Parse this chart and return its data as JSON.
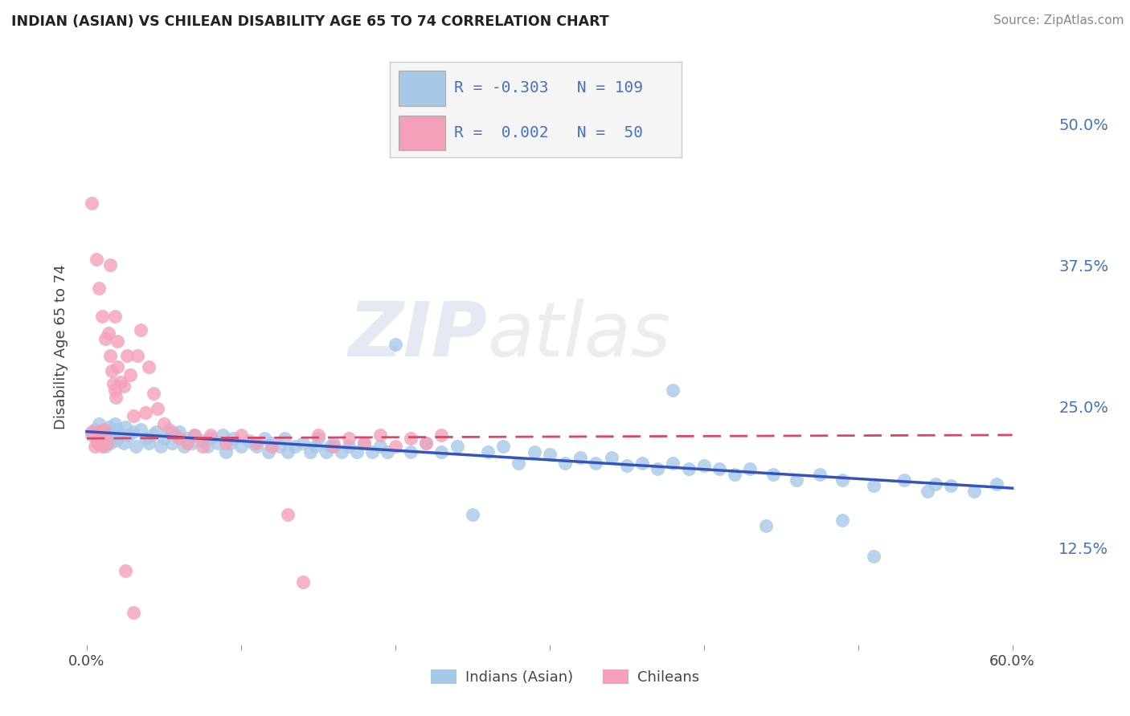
{
  "title": "INDIAN (ASIAN) VS CHILEAN DISABILITY AGE 65 TO 74 CORRELATION CHART",
  "source": "Source: ZipAtlas.com",
  "ylabel": "Disability Age 65 to 74",
  "xlim": [
    -0.005,
    0.625
  ],
  "ylim": [
    0.04,
    0.565
  ],
  "x_ticks": [
    0.0,
    0.1,
    0.2,
    0.3,
    0.4,
    0.5,
    0.6
  ],
  "x_tick_labels": [
    "0.0%",
    "",
    "",
    "",
    "",
    "",
    "60.0%"
  ],
  "y_ticks_right": [
    0.125,
    0.25,
    0.375,
    0.5
  ],
  "y_tick_labels_right": [
    "12.5%",
    "25.0%",
    "37.5%",
    "50.0%"
  ],
  "indian_color": "#a8c8e8",
  "chilean_color": "#f4a0b8",
  "indian_line_color": "#3355bb",
  "chilean_line_color": "#dd4466",
  "R_indian": -0.303,
  "N_indian": 109,
  "R_chilean": 0.002,
  "N_chilean": 50,
  "indian_x": [
    0.003,
    0.005,
    0.007,
    0.008,
    0.009,
    0.01,
    0.011,
    0.012,
    0.013,
    0.014,
    0.015,
    0.016,
    0.017,
    0.018,
    0.019,
    0.02,
    0.022,
    0.024,
    0.025,
    0.027,
    0.03,
    0.032,
    0.035,
    0.038,
    0.04,
    0.042,
    0.045,
    0.048,
    0.05,
    0.053,
    0.055,
    0.058,
    0.06,
    0.063,
    0.065,
    0.068,
    0.07,
    0.075,
    0.078,
    0.08,
    0.085,
    0.088,
    0.09,
    0.093,
    0.095,
    0.1,
    0.105,
    0.108,
    0.11,
    0.115,
    0.118,
    0.12,
    0.125,
    0.128,
    0.13,
    0.135,
    0.14,
    0.145,
    0.148,
    0.15,
    0.155,
    0.158,
    0.16,
    0.165,
    0.17,
    0.175,
    0.18,
    0.185,
    0.19,
    0.195,
    0.2,
    0.21,
    0.22,
    0.23,
    0.24,
    0.25,
    0.26,
    0.27,
    0.28,
    0.29,
    0.3,
    0.31,
    0.32,
    0.33,
    0.34,
    0.35,
    0.36,
    0.37,
    0.38,
    0.39,
    0.4,
    0.41,
    0.42,
    0.43,
    0.445,
    0.46,
    0.475,
    0.49,
    0.51,
    0.53,
    0.545,
    0.56,
    0.575,
    0.59,
    0.38,
    0.44,
    0.49,
    0.51,
    0.55
  ],
  "indian_y": [
    0.225,
    0.23,
    0.22,
    0.235,
    0.218,
    0.222,
    0.228,
    0.215,
    0.225,
    0.232,
    0.218,
    0.228,
    0.222,
    0.235,
    0.22,
    0.23,
    0.225,
    0.218,
    0.232,
    0.225,
    0.228,
    0.215,
    0.23,
    0.222,
    0.218,
    0.225,
    0.228,
    0.215,
    0.222,
    0.23,
    0.218,
    0.225,
    0.228,
    0.215,
    0.222,
    0.218,
    0.225,
    0.22,
    0.215,
    0.222,
    0.218,
    0.225,
    0.21,
    0.218,
    0.222,
    0.215,
    0.22,
    0.218,
    0.215,
    0.222,
    0.21,
    0.218,
    0.215,
    0.222,
    0.21,
    0.215,
    0.218,
    0.21,
    0.215,
    0.222,
    0.21,
    0.215,
    0.218,
    0.21,
    0.215,
    0.21,
    0.218,
    0.21,
    0.215,
    0.21,
    0.305,
    0.21,
    0.218,
    0.21,
    0.215,
    0.155,
    0.21,
    0.215,
    0.2,
    0.21,
    0.208,
    0.2,
    0.205,
    0.2,
    0.205,
    0.198,
    0.2,
    0.195,
    0.2,
    0.195,
    0.198,
    0.195,
    0.19,
    0.195,
    0.19,
    0.185,
    0.19,
    0.185,
    0.18,
    0.185,
    0.175,
    0.18,
    0.175,
    0.182,
    0.265,
    0.145,
    0.15,
    0.118,
    0.182
  ],
  "chilean_x": [
    0.003,
    0.005,
    0.006,
    0.007,
    0.008,
    0.009,
    0.01,
    0.011,
    0.012,
    0.013,
    0.014,
    0.015,
    0.016,
    0.017,
    0.018,
    0.019,
    0.02,
    0.022,
    0.024,
    0.026,
    0.028,
    0.03,
    0.033,
    0.035,
    0.038,
    0.04,
    0.043,
    0.046,
    0.05,
    0.055,
    0.06,
    0.065,
    0.07,
    0.075,
    0.08,
    0.09,
    0.1,
    0.11,
    0.12,
    0.13,
    0.14,
    0.15,
    0.16,
    0.17,
    0.18,
    0.19,
    0.2,
    0.21,
    0.22,
    0.23
  ],
  "chilean_y": [
    0.228,
    0.215,
    0.222,
    0.218,
    0.228,
    0.222,
    0.215,
    0.23,
    0.225,
    0.218,
    0.315,
    0.295,
    0.282,
    0.27,
    0.265,
    0.258,
    0.285,
    0.272,
    0.268,
    0.295,
    0.278,
    0.242,
    0.295,
    0.318,
    0.245,
    0.285,
    0.262,
    0.248,
    0.235,
    0.228,
    0.222,
    0.218,
    0.225,
    0.215,
    0.225,
    0.218,
    0.225,
    0.218,
    0.215,
    0.155,
    0.095,
    0.225,
    0.215,
    0.222,
    0.218,
    0.225,
    0.215,
    0.222,
    0.218,
    0.225
  ],
  "chilean_extra_x": [
    0.003,
    0.006,
    0.008,
    0.01,
    0.012,
    0.015,
    0.018,
    0.02,
    0.025,
    0.03
  ],
  "chilean_extra_y": [
    0.43,
    0.38,
    0.355,
    0.33,
    0.31,
    0.375,
    0.33,
    0.308,
    0.105,
    0.068
  ],
  "watermark_text": "ZIPatlas",
  "background_color": "#ffffff",
  "grid_color": "#cccccc"
}
